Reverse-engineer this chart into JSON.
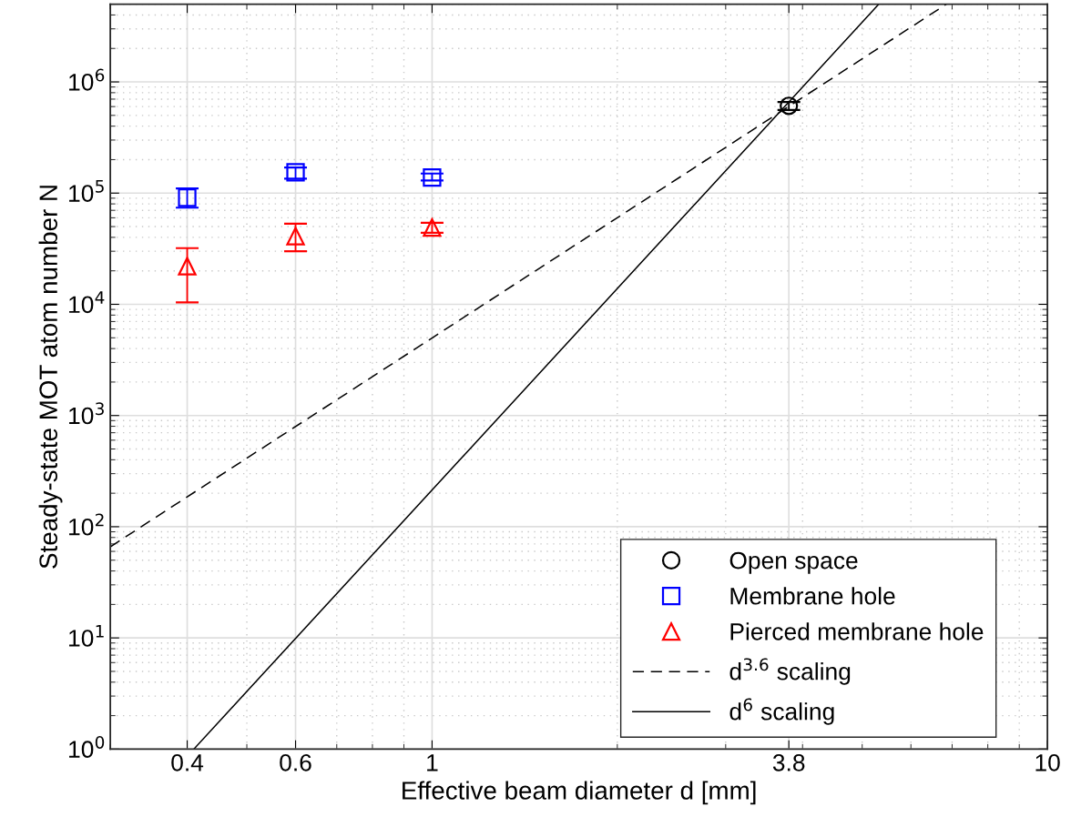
{
  "chart_data": {
    "type": "scatter",
    "xlabel": "Effective beam diameter d [mm]",
    "ylabel": "Steady-state MOT atom number N",
    "log": "xy",
    "grid": true,
    "legend": "bottom right",
    "xlim": [
      0.3,
      10
    ],
    "xticks": [
      0.4,
      0.6,
      1,
      3.8,
      10
    ],
    "ylim": [
      1,
      5000000
    ],
    "yticks": [
      {
        "value": 1,
        "label": "10$^{0}$"
      },
      {
        "value": 10,
        "label": "10$^{1}$"
      },
      {
        "value": 100,
        "label": "10$^{2}$"
      },
      {
        "value": 1000,
        "label": "10$^{3}$"
      },
      {
        "value": 10000,
        "label": "10$^{4}$"
      },
      {
        "value": 100000,
        "label": "10$^{5}$"
      },
      {
        "value": 1000000,
        "label": "10$^{6}$"
      }
    ],
    "series": [
      {
        "name": "Open space",
        "color": "#000000",
        "marker": "circle",
        "x": [
          3.8
        ],
        "values": [
          610000
        ],
        "errors": [
          [
            560000,
            660000
          ]
        ]
      },
      {
        "name": "Membrane hole",
        "color": "#0000ff",
        "marker": "square",
        "x": [
          0.4,
          0.6,
          1
        ],
        "values": [
          91000,
          154000,
          138000
        ],
        "errors": [
          [
            74000,
            110000
          ],
          [
            135000,
            170000
          ],
          [
            130000,
            150000
          ]
        ]
      },
      {
        "name": "Pierced membrane hole",
        "color": "#ff0000",
        "marker": "triangle",
        "x": [
          0.4,
          0.6,
          1
        ],
        "values": [
          22000,
          41000,
          49000
        ],
        "errors": [
          [
            10400,
            32000
          ],
          [
            30000,
            53000
          ],
          [
            44000,
            54000
          ]
        ]
      },
      {
        "name": "d$^{3.6}$ scaling",
        "type": "line",
        "color": "#000000",
        "line_style": "dashed",
        "marker": "none",
        "x": [
          0.3,
          6.85
        ],
        "values": [
          66,
          5000000
        ]
      },
      {
        "name": "d$^{6}$ scaling",
        "type": "line",
        "color": "#000000",
        "line_style": "solid",
        "marker": "none",
        "x": [
          0.41,
          5.32
        ],
        "values": [
          1,
          5000000
        ]
      }
    ]
  }
}
